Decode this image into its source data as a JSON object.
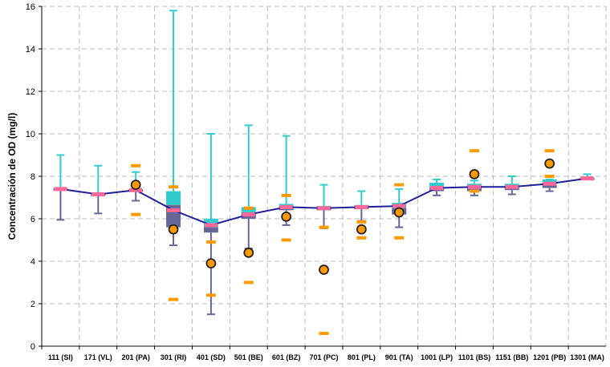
{
  "chart_data": {
    "type": "box",
    "title": "",
    "xlabel": "",
    "ylabel": "Concentración de OD (mg/l)",
    "ylim": [
      0,
      16
    ],
    "yticks": [
      "0",
      "2",
      "4",
      "6",
      "8",
      "10",
      "12",
      "14",
      "16"
    ],
    "grid": true,
    "colors": {
      "upper_box": "#33CCCC",
      "lower_box": "#666699",
      "mean": "#FF6699",
      "marker": "#FF9900",
      "line": "#1F1F99",
      "grid": "#BBBBBB"
    },
    "categories": [
      "111 (SI)",
      "171 (VL)",
      "201 (PA)",
      "301 (RI)",
      "401 (SD)",
      "501 (BE)",
      "601 (BZ)",
      "701 (PC)",
      "801 (PL)",
      "901 (TA)",
      "1001 (LP)",
      "1101 (BS)",
      "1151 (BB)",
      "1201 (PB)",
      "1301 (MA)"
    ],
    "series": [
      {
        "min": 5.95,
        "q1": 7.35,
        "median": 7.4,
        "q3": 7.45,
        "max": 9.0,
        "mean": 7.4,
        "dashes": [],
        "point": null
      },
      {
        "min": 6.25,
        "q1": 7.1,
        "median": 7.15,
        "q3": 7.2,
        "max": 8.5,
        "mean": 7.15,
        "dashes": [],
        "point": null
      },
      {
        "min": 6.85,
        "q1": 7.3,
        "median": 7.35,
        "q3": 7.4,
        "max": 8.2,
        "mean": 7.35,
        "dashes": [
          8.5,
          6.2
        ],
        "point": 7.6
      },
      {
        "min": 4.75,
        "q1": 5.6,
        "median": 6.65,
        "q3": 7.3,
        "max": 15.8,
        "mean": 6.4,
        "dashes": [
          7.5,
          2.2
        ],
        "point": 5.5
      },
      {
        "min": 1.5,
        "q1": 5.35,
        "median": 5.6,
        "q3": 6.0,
        "max": 10.0,
        "mean": 5.7,
        "dashes": [
          4.9,
          2.4
        ],
        "point": 3.9
      },
      {
        "min": 4.6,
        "q1": 6.0,
        "median": 6.3,
        "q3": 6.55,
        "max": 10.4,
        "mean": 6.2,
        "dashes": [
          6.5,
          3.0
        ],
        "point": 4.4
      },
      {
        "min": 5.7,
        "q1": 6.4,
        "median": 6.55,
        "q3": 6.7,
        "max": 9.9,
        "mean": 6.55,
        "dashes": [
          7.1,
          5.0
        ],
        "point": 6.1
      },
      {
        "min": 5.55,
        "q1": 6.4,
        "median": 6.5,
        "q3": 6.6,
        "max": 7.6,
        "mean": 6.5,
        "dashes": [
          5.6,
          0.6
        ],
        "point": 3.6
      },
      {
        "min": 5.9,
        "q1": 6.45,
        "median": 6.55,
        "q3": 6.65,
        "max": 7.3,
        "mean": 6.55,
        "dashes": [
          5.85,
          5.1
        ],
        "point": 5.5
      },
      {
        "min": 5.6,
        "q1": 6.2,
        "median": 6.5,
        "q3": 6.75,
        "max": 7.4,
        "mean": 6.6,
        "dashes": [
          7.6,
          5.1
        ],
        "point": 6.3
      },
      {
        "min": 7.1,
        "q1": 7.3,
        "median": 7.45,
        "q3": 7.7,
        "max": 7.85,
        "mean": 7.45,
        "dashes": [],
        "point": null
      },
      {
        "min": 7.1,
        "q1": 7.3,
        "median": 7.45,
        "q3": 7.65,
        "max": 7.8,
        "mean": 7.5,
        "dashes": [
          9.2,
          7.3
        ],
        "point": 8.1
      },
      {
        "min": 7.15,
        "q1": 7.35,
        "median": 7.5,
        "q3": 7.65,
        "max": 8.0,
        "mean": 7.5,
        "dashes": [],
        "point": null
      },
      {
        "min": 7.3,
        "q1": 7.45,
        "median": 7.6,
        "q3": 7.85,
        "max": 7.85,
        "mean": 7.65,
        "dashes": [
          9.2,
          8.0
        ],
        "point": 8.6
      },
      {
        "min": 7.85,
        "q1": 7.85,
        "median": 7.9,
        "q3": 7.95,
        "max": 8.1,
        "mean": 7.9,
        "dashes": [],
        "point": null
      }
    ]
  }
}
